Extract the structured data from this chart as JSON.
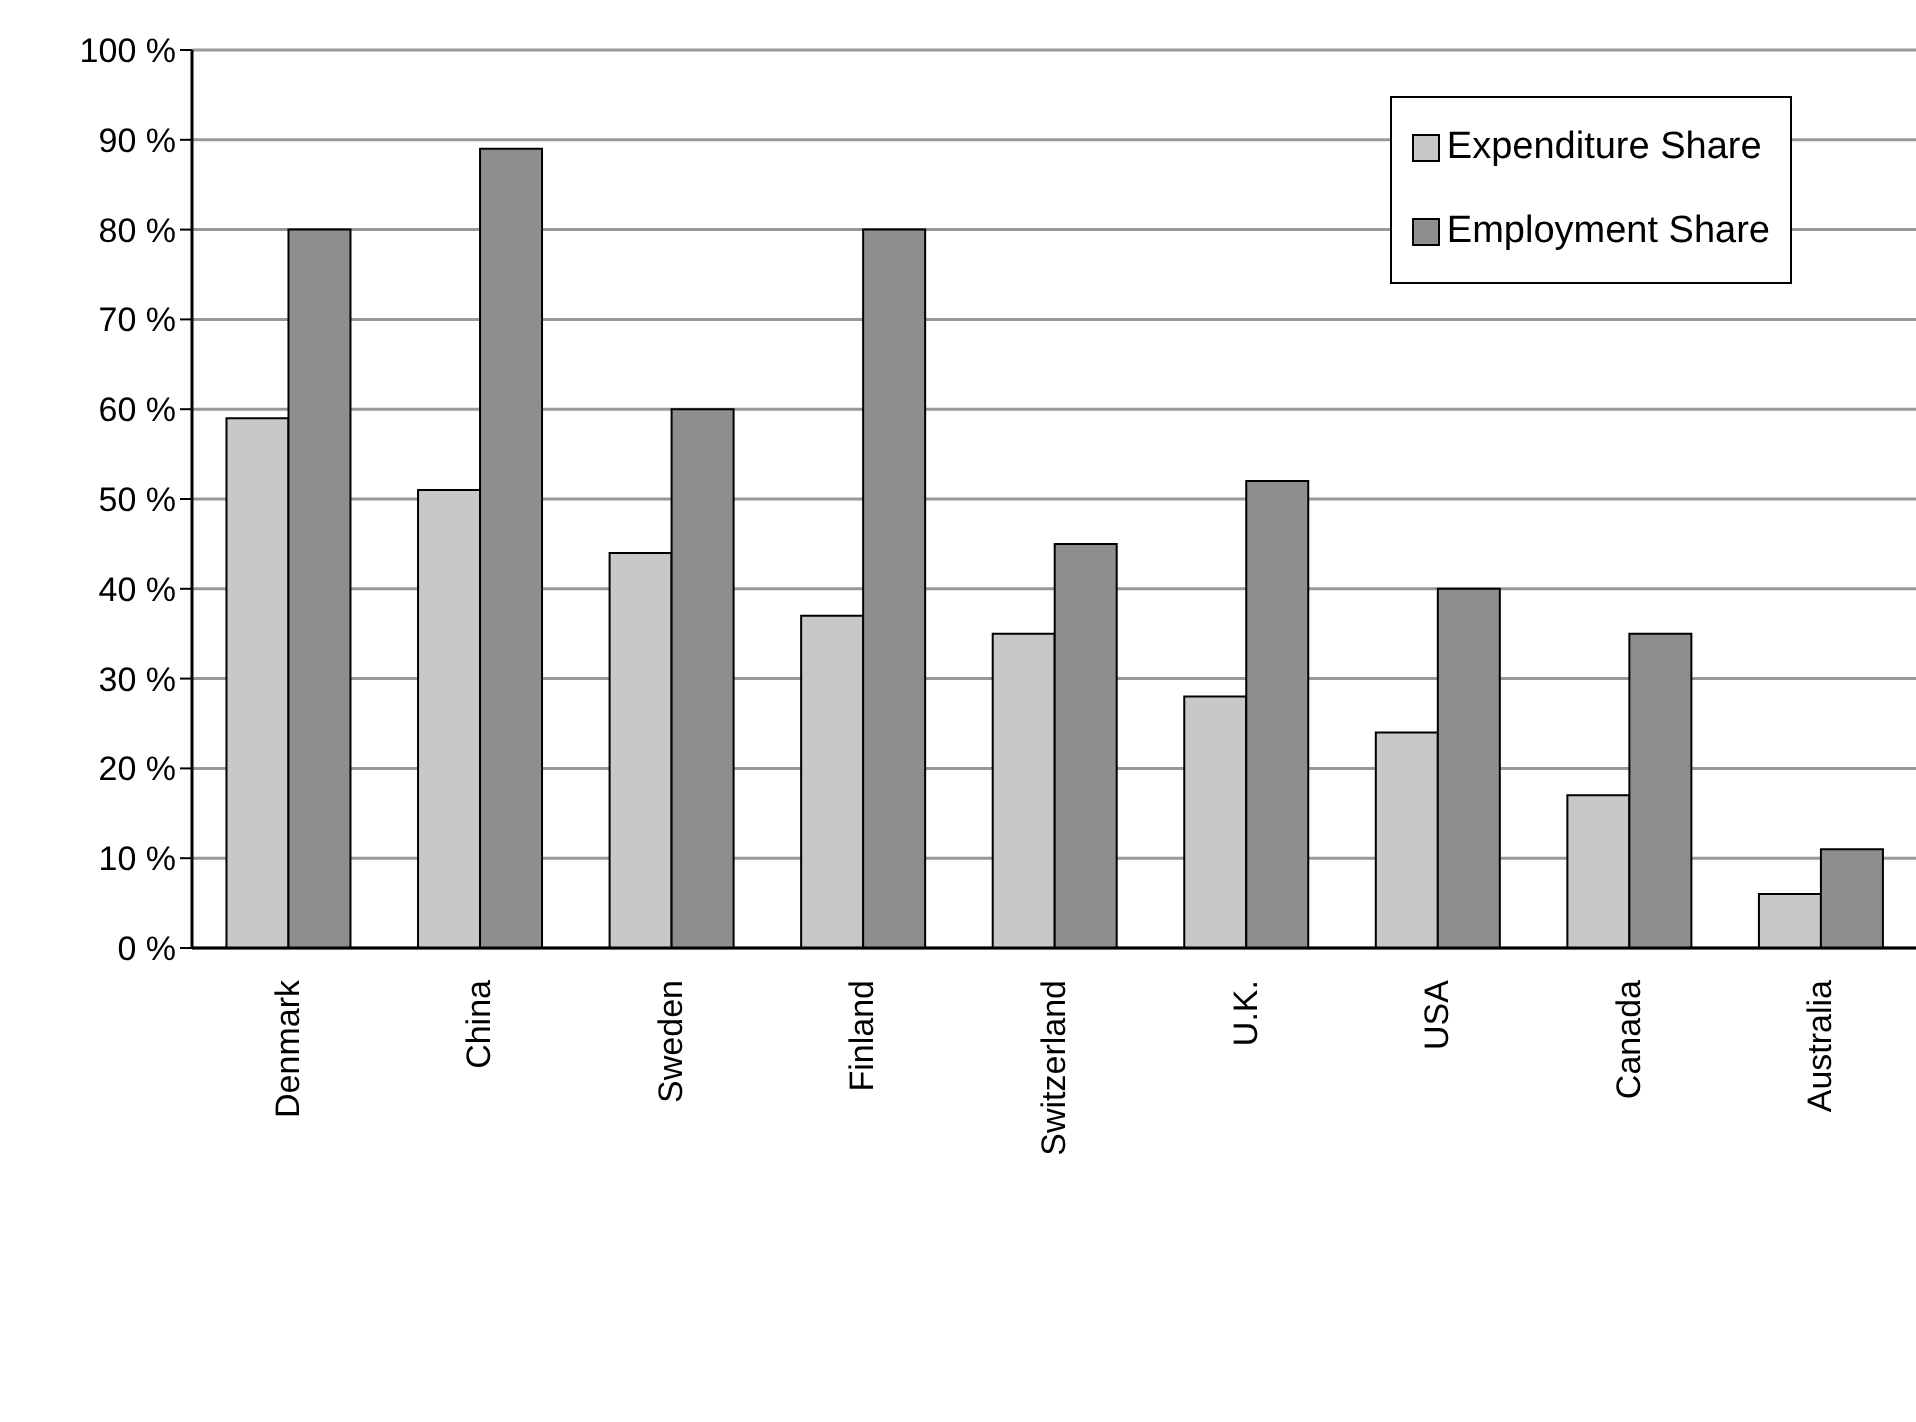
{
  "chart_data": {
    "type": "bar",
    "categories": [
      "Denmark",
      "China",
      "Sweden",
      "Finland",
      "Switzerland",
      "U.K.",
      "USA",
      "Canada",
      "Australia"
    ],
    "series": [
      {
        "name": "Expenditure Share",
        "color": "#c8c8c8",
        "values": [
          59,
          51,
          44,
          37,
          35,
          28,
          24,
          17,
          6
        ]
      },
      {
        "name": "Employment Share",
        "color": "#8e8e90",
        "values": [
          80,
          89,
          60,
          80,
          45,
          52,
          40,
          35,
          11
        ]
      }
    ],
    "ylim": [
      0,
      100
    ],
    "yticks": [
      {
        "value": 0,
        "label": "0 %"
      },
      {
        "value": 10,
        "label": "10 %"
      },
      {
        "value": 20,
        "label": "20 %"
      },
      {
        "value": 30,
        "label": "30 %"
      },
      {
        "value": 40,
        "label": "40 %"
      },
      {
        "value": 50,
        "label": "50 %"
      },
      {
        "value": 60,
        "label": "60 %"
      },
      {
        "value": 70,
        "label": "70 %"
      },
      {
        "value": 80,
        "label": "80 %"
      },
      {
        "value": 90,
        "label": "90 %"
      },
      {
        "value": 100,
        "label": "100 %"
      }
    ],
    "grid": "y",
    "legend": "top right"
  }
}
